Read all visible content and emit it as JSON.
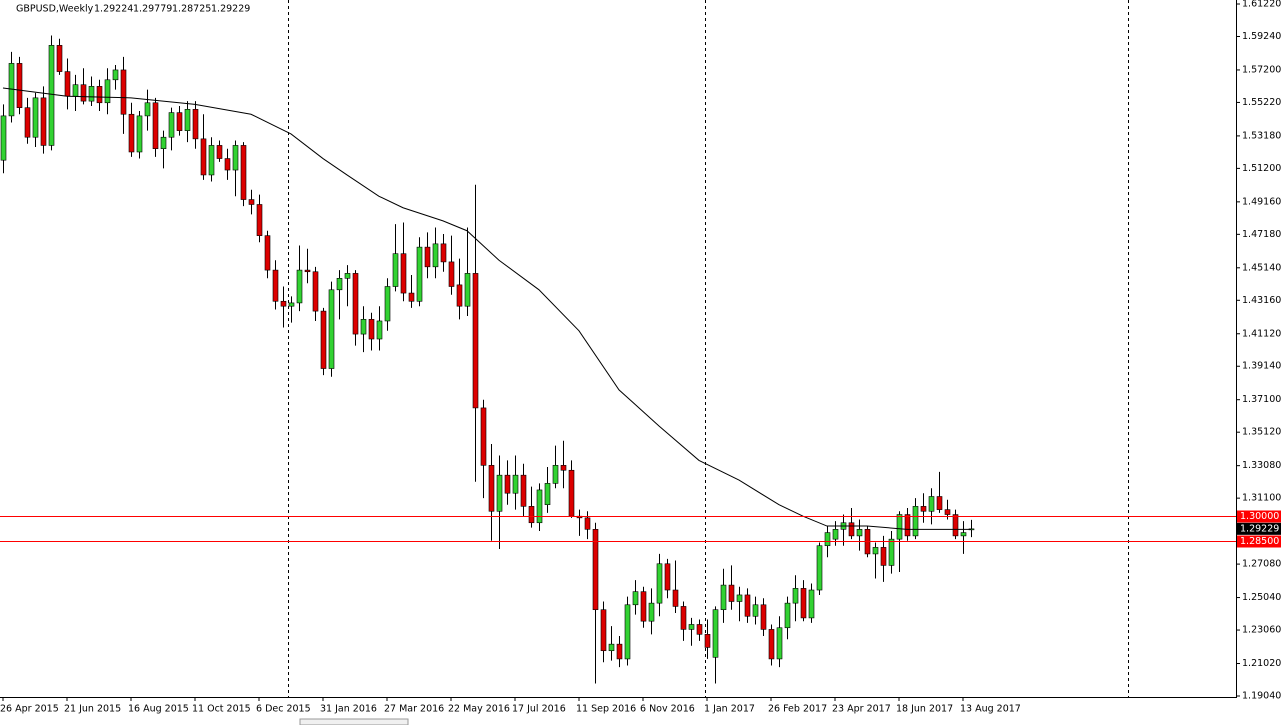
{
  "chart_data": {
    "type": "candlestick",
    "title": "GBPUSD,Weekly",
    "categories": [
      "26 Apr 2015",
      null,
      null,
      null,
      null,
      null,
      null,
      null,
      "21 Jun 2015",
      null,
      null,
      null,
      null,
      null,
      null,
      null,
      "16 Aug 2015",
      null,
      null,
      null,
      null,
      null,
      null,
      null,
      "11 Oct 2015",
      null,
      null,
      null,
      null,
      null,
      null,
      null,
      "6 Dec 2015",
      null,
      null,
      null,
      null,
      null,
      null,
      null,
      "31 Jan 2016",
      null,
      null,
      null,
      null,
      null,
      null,
      null,
      "27 Mar 2016",
      null,
      null,
      null,
      null,
      null,
      null,
      null,
      "22 May 2016",
      null,
      null,
      null,
      null,
      null,
      null,
      null,
      "17 Jul 2016",
      null,
      null,
      null,
      null,
      null,
      null,
      null,
      "11 Sep 2016",
      null,
      null,
      null,
      null,
      null,
      null,
      null,
      "6 Nov 2016",
      null,
      null,
      null,
      null,
      null,
      null,
      null,
      "1 Jan 2017",
      null,
      null,
      null,
      null,
      null,
      null,
      null,
      "26 Feb 2017",
      null,
      null,
      null,
      null,
      null,
      null,
      null,
      "23 Apr 2017",
      null,
      null,
      null,
      null,
      null,
      null,
      null,
      "18 Jun 2017",
      null,
      null,
      null,
      null,
      null,
      null,
      null,
      "13 Aug 2017",
      null
    ],
    "open": [
      1.517,
      1.544,
      1.576,
      1.549,
      1.531,
      1.555,
      1.526,
      1.587,
      1.571,
      1.556,
      1.563,
      1.553,
      1.562,
      1.552,
      1.566,
      1.572,
      1.545,
      1.522,
      1.544,
      1.552,
      1.524,
      1.531,
      1.546,
      1.535,
      1.548,
      1.53,
      1.508,
      1.526,
      1.518,
      1.511,
      1.526,
      1.493,
      1.49,
      1.471,
      1.45,
      1.431,
      1.428,
      1.43,
      1.45,
      1.449,
      1.425,
      1.39,
      1.438,
      1.445,
      1.448,
      1.411,
      1.42,
      1.408,
      1.419,
      1.44,
      1.46,
      1.436,
      1.431,
      1.464,
      1.452,
      1.466,
      1.455,
      1.441,
      1.428,
      1.448,
      1.366,
      1.331,
      1.303,
      1.325,
      1.314,
      1.325,
      1.306,
      1.296,
      1.307,
      1.32,
      1.331,
      1.328,
      1.3,
      1.299,
      1.292,
      1.243,
      1.218,
      1.222,
      1.213,
      1.246,
      1.254,
      1.236,
      1.247,
      1.271,
      1.255,
      1.245,
      1.231,
      1.234,
      1.228,
      1.214,
      1.243,
      1.258,
      1.248,
      1.252,
      1.239,
      1.246,
      1.231,
      1.213,
      1.232,
      1.247,
      1.256,
      1.238,
      1.255,
      1.282,
      1.286,
      1.292,
      1.296,
      1.288,
      1.292,
      1.277,
      1.281,
      1.27,
      1.286,
      1.301,
      1.288,
      1.306,
      1.303,
      1.312,
      1.304,
      1.301,
      1.288,
      1.29224
    ],
    "high": [
      1.551,
      1.583,
      1.58,
      1.555,
      1.558,
      1.562,
      1.593,
      1.591,
      1.579,
      1.569,
      1.573,
      1.568,
      1.566,
      1.573,
      1.575,
      1.58,
      1.552,
      1.547,
      1.56,
      1.555,
      1.535,
      1.549,
      1.55,
      1.553,
      1.553,
      1.545,
      1.531,
      1.529,
      1.524,
      1.529,
      1.528,
      1.499,
      1.496,
      1.474,
      1.456,
      1.44,
      1.434,
      1.465,
      1.463,
      1.452,
      1.427,
      1.443,
      1.45,
      1.453,
      1.45,
      1.428,
      1.424,
      1.428,
      1.445,
      1.478,
      1.479,
      1.447,
      1.47,
      1.473,
      1.476,
      1.472,
      1.471,
      1.457,
      1.476,
      1.502,
      1.371,
      1.344,
      1.337,
      1.334,
      1.337,
      1.332,
      1.318,
      1.32,
      1.33,
      1.343,
      1.346,
      1.334,
      1.304,
      1.303,
      1.296,
      1.248,
      1.233,
      1.227,
      1.251,
      1.261,
      1.257,
      1.256,
      1.277,
      1.274,
      1.273,
      1.248,
      1.238,
      1.237,
      1.237,
      1.245,
      1.268,
      1.27,
      1.257,
      1.256,
      1.251,
      1.25,
      1.234,
      1.239,
      1.251,
      1.264,
      1.261,
      1.259,
      1.284,
      1.294,
      1.297,
      1.301,
      1.305,
      1.298,
      1.294,
      1.284,
      1.288,
      1.291,
      1.303,
      1.305,
      1.311,
      1.314,
      1.317,
      1.327,
      1.31,
      1.304,
      1.297,
      1.29779
    ],
    "low": [
      1.509,
      1.54,
      1.545,
      1.527,
      1.525,
      1.521,
      1.523,
      1.569,
      1.548,
      1.547,
      1.551,
      1.55,
      1.547,
      1.545,
      1.56,
      1.533,
      1.519,
      1.518,
      1.535,
      1.519,
      1.512,
      1.523,
      1.532,
      1.528,
      1.524,
      1.505,
      1.504,
      1.516,
      1.505,
      1.495,
      1.489,
      1.484,
      1.467,
      1.445,
      1.426,
      1.415,
      1.418,
      1.425,
      1.442,
      1.419,
      1.386,
      1.385,
      1.42,
      1.428,
      1.404,
      1.4,
      1.401,
      1.401,
      1.413,
      1.437,
      1.431,
      1.427,
      1.428,
      1.445,
      1.445,
      1.449,
      1.435,
      1.42,
      1.422,
      1.321,
      1.311,
      1.285,
      1.28,
      1.307,
      1.304,
      1.3,
      1.293,
      1.291,
      1.302,
      1.317,
      1.317,
      1.299,
      1.288,
      1.286,
      1.198,
      1.211,
      1.212,
      1.208,
      1.209,
      1.24,
      1.232,
      1.228,
      1.239,
      1.25,
      1.241,
      1.224,
      1.221,
      1.224,
      1.213,
      1.198,
      1.235,
      1.243,
      1.236,
      1.235,
      1.234,
      1.227,
      1.209,
      1.208,
      1.225,
      1.236,
      1.236,
      1.235,
      1.252,
      1.275,
      1.282,
      1.282,
      1.286,
      1.279,
      1.275,
      1.262,
      1.26,
      1.265,
      1.266,
      1.285,
      1.286,
      1.296,
      1.295,
      1.302,
      1.298,
      1.286,
      1.277,
      1.28725
    ],
    "close": [
      1.544,
      1.576,
      1.549,
      1.531,
      1.555,
      1.526,
      1.587,
      1.571,
      1.556,
      1.563,
      1.553,
      1.562,
      1.552,
      1.566,
      1.572,
      1.545,
      1.522,
      1.544,
      1.552,
      1.524,
      1.531,
      1.546,
      1.535,
      1.548,
      1.53,
      1.508,
      1.526,
      1.518,
      1.511,
      1.526,
      1.493,
      1.49,
      1.471,
      1.45,
      1.431,
      1.428,
      1.43,
      1.45,
      1.449,
      1.425,
      1.39,
      1.438,
      1.445,
      1.448,
      1.411,
      1.42,
      1.408,
      1.419,
      1.44,
      1.46,
      1.436,
      1.431,
      1.464,
      1.452,
      1.466,
      1.455,
      1.44,
      1.428,
      1.448,
      1.366,
      1.331,
      1.303,
      1.325,
      1.314,
      1.325,
      1.306,
      1.296,
      1.316,
      1.32,
      1.331,
      1.328,
      1.3,
      1.299,
      1.292,
      1.243,
      1.218,
      1.222,
      1.213,
      1.246,
      1.254,
      1.236,
      1.247,
      1.271,
      1.255,
      1.245,
      1.231,
      1.234,
      1.228,
      1.22,
      1.243,
      1.258,
      1.248,
      1.252,
      1.239,
      1.246,
      1.231,
      1.213,
      1.232,
      1.247,
      1.256,
      1.238,
      1.255,
      1.282,
      1.29,
      1.292,
      1.296,
      1.288,
      1.292,
      1.277,
      1.281,
      1.27,
      1.286,
      1.301,
      1.288,
      1.306,
      1.303,
      1.312,
      1.304,
      1.301,
      1.288,
      1.29,
      1.29229
    ],
    "up_color": "#32d232",
    "down_color": "#dc0000",
    "ma": {
      "color": "#000000",
      "x": [
        0,
        8,
        16,
        24,
        31,
        36,
        40,
        43,
        47,
        50,
        55,
        58,
        62,
        67,
        72,
        77,
        82,
        87,
        92,
        97,
        100,
        103,
        108,
        113,
        118,
        121
      ],
      "values": [
        1.561,
        1.556,
        1.555,
        1.551,
        1.545,
        1.533,
        1.518,
        1.508,
        1.495,
        1.488,
        1.48,
        1.474,
        1.456,
        1.438,
        1.413,
        1.377,
        1.355,
        1.334,
        1.322,
        1.307,
        1.3,
        1.294,
        1.294,
        1.292,
        1.292,
        1.292
      ]
    },
    "levels": [
      {
        "value": 1.3,
        "label": "1.30000",
        "color": "#ff0000"
      },
      {
        "value": 1.285,
        "label": "1.28500",
        "color": "#ff0000"
      }
    ],
    "ylim": [
      1.1904,
      1.6122
    ],
    "yticks": [
      {
        "value": 1.6122,
        "label": "1.61220"
      },
      {
        "value": 1.5924,
        "label": "1.59240"
      },
      {
        "value": 1.572,
        "label": "1.57200"
      },
      {
        "value": 1.5522,
        "label": "1.55220"
      },
      {
        "value": 1.5318,
        "label": "1.53180"
      },
      {
        "value": 1.512,
        "label": "1.51200"
      },
      {
        "value": 1.4916,
        "label": "1.49160"
      },
      {
        "value": 1.4718,
        "label": "1.47180"
      },
      {
        "value": 1.4514,
        "label": "1.45140"
      },
      {
        "value": 1.4316,
        "label": "1.43160"
      },
      {
        "value": 1.4112,
        "label": "1.41120"
      },
      {
        "value": 1.3914,
        "label": "1.39140"
      },
      {
        "value": 1.371,
        "label": "1.37100"
      },
      {
        "value": 1.3512,
        "label": "1.35120"
      },
      {
        "value": 1.3308,
        "label": "1.33080"
      },
      {
        "value": 1.311,
        "label": "1.31100"
      },
      {
        "value": 1.2708,
        "label": "1.27080"
      },
      {
        "value": 1.2504,
        "label": "1.25040"
      },
      {
        "value": 1.2306,
        "label": "1.23060"
      },
      {
        "value": 1.2102,
        "label": "1.21020"
      },
      {
        "value": 1.1904,
        "label": "1.19040"
      }
    ]
  }
}
